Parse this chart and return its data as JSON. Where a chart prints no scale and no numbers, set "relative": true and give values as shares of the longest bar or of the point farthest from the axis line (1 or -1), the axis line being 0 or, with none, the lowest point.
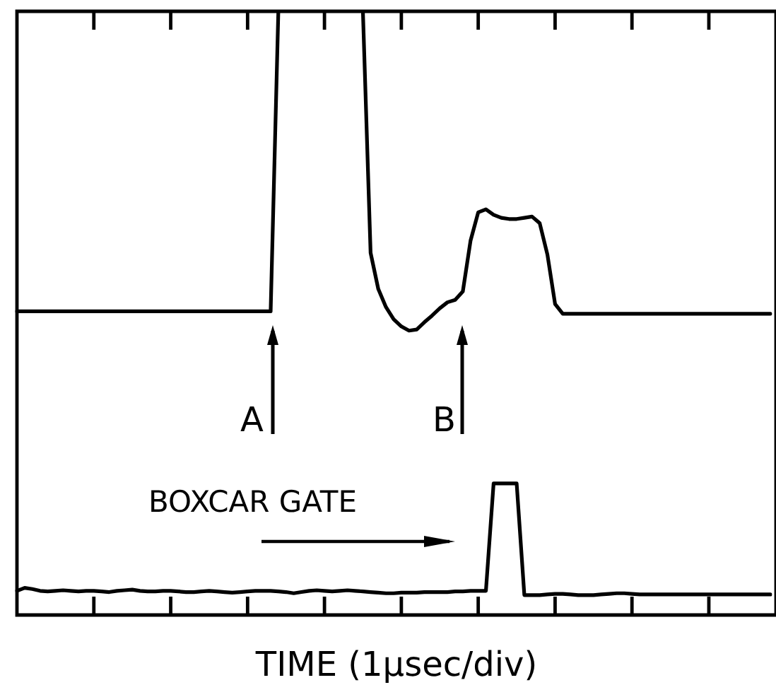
{
  "chart_data": {
    "type": "line",
    "relative": true,
    "xlabel": "TIME (1µsec/div)",
    "categories": [
      null,
      null,
      null,
      null,
      null,
      null,
      null,
      null,
      null,
      null,
      null,
      null,
      null,
      null,
      null,
      null,
      null,
      null,
      null,
      null,
      null,
      null,
      null,
      null,
      null,
      null,
      null,
      null,
      null,
      null,
      null,
      null,
      null,
      null,
      null,
      null,
      null,
      null,
      null,
      null,
      null,
      null,
      null,
      null,
      null,
      null,
      null,
      null,
      null,
      null,
      null,
      null,
      null,
      null,
      null,
      null,
      null,
      null,
      null,
      null,
      null,
      null,
      null,
      null,
      null,
      null,
      null,
      null,
      null,
      null,
      null,
      null,
      null,
      null,
      null,
      null,
      null,
      null,
      null,
      null,
      null,
      null,
      null,
      null,
      null,
      null,
      null,
      null,
      null,
      null,
      null,
      null,
      null,
      null,
      null,
      null,
      null,
      null,
      null
    ],
    "series": [
      {
        "color": "#000000",
        "values": [
          0.503,
          0.503,
          0.503,
          0.503,
          0.503,
          0.503,
          0.503,
          0.503,
          0.503,
          0.503,
          0.503,
          0.503,
          0.503,
          0.503,
          0.503,
          0.503,
          0.503,
          0.503,
          0.503,
          0.503,
          0.503,
          0.503,
          0.503,
          0.503,
          0.503,
          0.503,
          0.503,
          0.503,
          0.503,
          0.503,
          0.503,
          0.503,
          0.503,
          0.503,
          1,
          null,
          null,
          null,
          null,
          null,
          null,
          null,
          null,
          null,
          null,
          1,
          0.6,
          0.54,
          0.51,
          0.49,
          0.478,
          0.471,
          0.473,
          0.485,
          0.496,
          0.508,
          0.518,
          0.522,
          0.536,
          0.62,
          0.667,
          0.672,
          0.663,
          0.658,
          0.656,
          0.656,
          0.658,
          0.66,
          0.649,
          0.597,
          0.515,
          0.499,
          0.499,
          0.499,
          0.499,
          0.499,
          0.499,
          0.499,
          0.499,
          0.499,
          0.499,
          0.499,
          0.499,
          0.499,
          0.499,
          0.499,
          0.499,
          0.499,
          0.499,
          0.499,
          0.499,
          0.499,
          0.499,
          0.499,
          0.499,
          0.499,
          0.499,
          0.499,
          0.499
        ]
      },
      {
        "color": "#000000",
        "values": [
          0.04,
          0.045,
          0.043,
          0.04,
          0.039,
          0.04,
          0.041,
          0.04,
          0.039,
          0.04,
          0.04,
          0.039,
          0.038,
          0.04,
          0.041,
          0.042,
          0.04,
          0.039,
          0.039,
          0.04,
          0.04,
          0.039,
          0.038,
          0.038,
          0.039,
          0.04,
          0.039,
          0.038,
          0.037,
          0.038,
          0.039,
          0.04,
          0.04,
          0.04,
          0.039,
          0.038,
          0.036,
          0.038,
          0.04,
          0.041,
          0.04,
          0.039,
          0.04,
          0.041,
          0.04,
          0.039,
          0.038,
          0.037,
          0.036,
          0.036,
          0.037,
          0.037,
          0.037,
          0.038,
          0.038,
          0.038,
          0.038,
          0.039,
          0.039,
          0.04,
          0.04,
          0.04,
          0.218,
          0.218,
          0.218,
          0.218,
          0.033,
          0.033,
          0.033,
          0.034,
          0.035,
          0.035,
          0.034,
          0.033,
          0.033,
          0.033,
          0.034,
          0.035,
          0.036,
          0.036,
          0.035,
          0.034,
          0.034,
          0.034,
          0.034,
          0.034,
          0.034,
          0.034,
          0.034,
          0.034,
          0.034,
          0.034,
          0.034,
          0.034,
          0.034,
          0.034,
          0.034,
          0.034,
          0.034
        ]
      }
    ],
    "annotations": [
      "A",
      "B",
      "BOXCAR GATE"
    ],
    "legend": false,
    "marker": "none",
    "line_style": "solid"
  }
}
